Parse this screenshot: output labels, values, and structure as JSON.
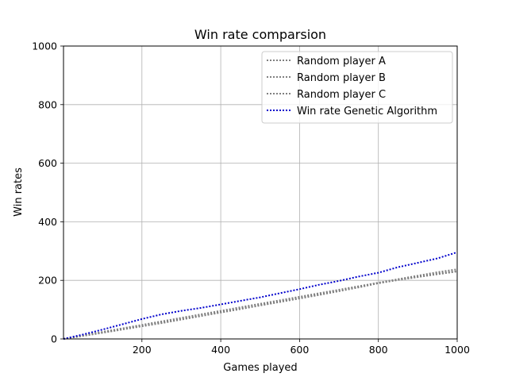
{
  "chart_data": {
    "type": "line",
    "title": "Win rate comparsion",
    "xlabel": "Games played",
    "ylabel": "Win rates",
    "xlim": [
      1,
      1000
    ],
    "ylim": [
      0,
      1000
    ],
    "xticks": [
      200,
      400,
      600,
      800,
      1000
    ],
    "yticks": [
      0,
      200,
      400,
      600,
      800,
      1000
    ],
    "grid": true,
    "legend_position": "top-right",
    "series": [
      {
        "name": "Random player A",
        "color": "#808080",
        "style": "dotted",
        "x": [
          1,
          50,
          100,
          150,
          200,
          250,
          300,
          350,
          400,
          450,
          500,
          550,
          600,
          650,
          700,
          750,
          800,
          850,
          900,
          950,
          1000
        ],
        "y": [
          0,
          12,
          24,
          36,
          48,
          60,
          72,
          84,
          96,
          108,
          120,
          132,
          144,
          156,
          168,
          180,
          192,
          204,
          216,
          228,
          238
        ]
      },
      {
        "name": "Random player B",
        "color": "#808080",
        "style": "dotted",
        "x": [
          1,
          50,
          100,
          150,
          200,
          250,
          300,
          350,
          400,
          450,
          500,
          550,
          600,
          650,
          700,
          750,
          800,
          850,
          900,
          950,
          1000
        ],
        "y": [
          0,
          11,
          22,
          34,
          45,
          57,
          68,
          80,
          92,
          104,
          116,
          128,
          140,
          152,
          165,
          178,
          192,
          203,
          213,
          223,
          232
        ]
      },
      {
        "name": "Random player C",
        "color": "#808080",
        "style": "dotted",
        "x": [
          1,
          50,
          100,
          150,
          200,
          250,
          300,
          350,
          400,
          450,
          500,
          550,
          600,
          650,
          700,
          750,
          800,
          850,
          900,
          950,
          1000
        ],
        "y": [
          0,
          10,
          21,
          32,
          43,
          54,
          66,
          78,
          90,
          102,
          114,
          126,
          138,
          150,
          163,
          176,
          190,
          201,
          211,
          221,
          230
        ]
      },
      {
        "name": "Win rate Genetic Algorithm",
        "color": "#0000cc",
        "style": "dotted",
        "x": [
          1,
          50,
          100,
          150,
          200,
          250,
          300,
          350,
          400,
          450,
          500,
          550,
          600,
          650,
          700,
          750,
          800,
          850,
          900,
          950,
          1000
        ],
        "y": [
          0,
          15,
          32,
          50,
          68,
          84,
          96,
          106,
          118,
          130,
          142,
          156,
          170,
          185,
          198,
          213,
          226,
          245,
          260,
          275,
          296
        ]
      }
    ]
  }
}
